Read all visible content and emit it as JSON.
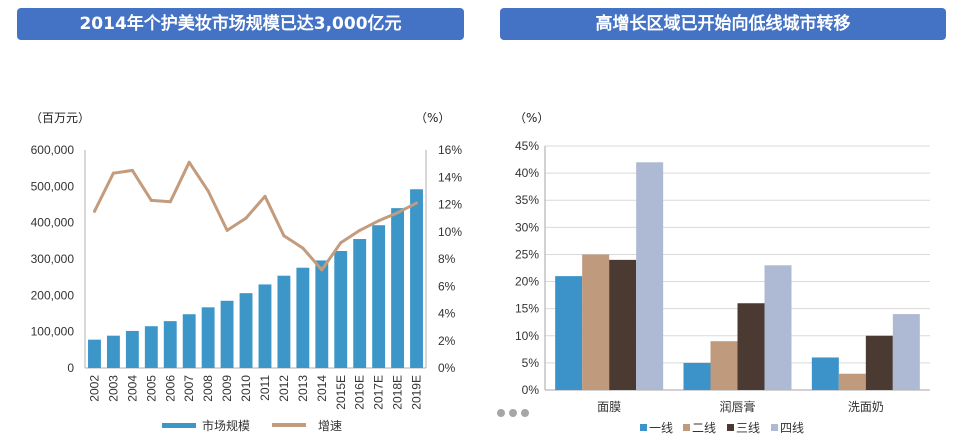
{
  "colors": {
    "banner": "#4472c4",
    "bar": "#3c96c8",
    "line": "#c39b7d",
    "tier1": "#3b93c9",
    "tier2": "#bf9a7c",
    "tier3": "#4a3a32",
    "tier4": "#aeb9d4"
  },
  "chart_data": [
    {
      "type": "bar+line",
      "title": "2014年个护美妆市场规模已达3,000亿元",
      "left_unit": "（百万元）",
      "right_unit": "（%）",
      "categories": [
        "2002",
        "2003",
        "2004",
        "2005",
        "2006",
        "2007",
        "2008",
        "2009",
        "2010",
        "2011",
        "2012",
        "2013",
        "2014",
        "2015E",
        "2016E",
        "2017E",
        "2018E",
        "2019E"
      ],
      "series": [
        {
          "name": "市场规模",
          "kind": "bar",
          "axis": "left",
          "values": [
            78000,
            89000,
            102000,
            115000,
            129000,
            148000,
            167000,
            185000,
            206000,
            230000,
            254000,
            276000,
            296000,
            322000,
            355000,
            393000,
            440000,
            492000
          ]
        },
        {
          "name": "增速",
          "kind": "line",
          "axis": "right",
          "values": [
            11.5,
            14.3,
            14.5,
            12.3,
            12.2,
            15.1,
            13.0,
            10.1,
            11.0,
            12.6,
            9.7,
            8.8,
            7.2,
            9.2,
            10.1,
            10.8,
            11.4,
            12.1
          ]
        }
      ],
      "ylim_left": [
        0,
        600000
      ],
      "ylim_right": [
        0,
        16
      ],
      "yticks_left": [
        "0",
        "100,000",
        "200,000",
        "300,000",
        "400,000",
        "500,000",
        "600,000"
      ],
      "yticks_right": [
        "0%",
        "2%",
        "4%",
        "6%",
        "8%",
        "10%",
        "12%",
        "14%",
        "16%"
      ],
      "legend": [
        "市场规模",
        "增速"
      ]
    },
    {
      "type": "bar",
      "title": "高增长区域已开始向低线城市转移",
      "unit": "（%）",
      "categories": [
        "面膜",
        "润唇膏",
        "洗面奶"
      ],
      "series": [
        {
          "name": "一线",
          "values": [
            21,
            5,
            6
          ]
        },
        {
          "name": "二线",
          "values": [
            25,
            9,
            3
          ]
        },
        {
          "name": "三线",
          "values": [
            24,
            16,
            10
          ]
        },
        {
          "name": "四线",
          "values": [
            42,
            23,
            14
          ]
        }
      ],
      "ylim": [
        0,
        45
      ],
      "yticks": [
        "0%",
        "5%",
        "10%",
        "15%",
        "20%",
        "25%",
        "30%",
        "35%",
        "40%",
        "45%"
      ],
      "legend": [
        "一线",
        "二线",
        "三线",
        "四线"
      ]
    }
  ]
}
